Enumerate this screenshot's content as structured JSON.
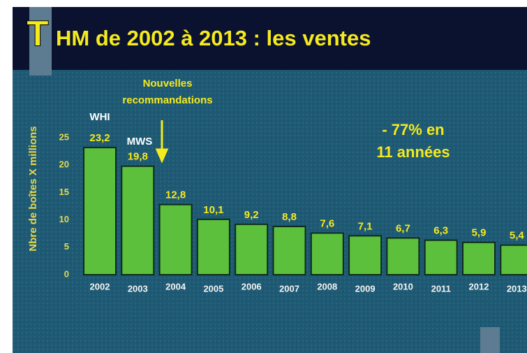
{
  "chart_data": {
    "type": "bar",
    "title": [
      "T",
      "HM de 2002 à 2013 : les ventes"
    ],
    "y_label": "Nbre de boîtes X millions",
    "categories": [
      "2002",
      "2003",
      "2004",
      "2005",
      "2006",
      "2007",
      "2008",
      "2009",
      "2010",
      "2011",
      "2012",
      "2013"
    ],
    "values": [
      23.2,
      19.8,
      12.8,
      10.1,
      9.2,
      8.8,
      7.6,
      7.1,
      6.7,
      6.3,
      5.9,
      5.4
    ],
    "value_labels": [
      "23,2",
      "19,8",
      "12,8",
      "10,1",
      "9,2",
      "8,8",
      "7,6",
      "7,1",
      "6,7",
      "6,3",
      "5,9",
      "5,4"
    ],
    "color": "#5cc03c",
    "ylim": [
      0,
      25
    ],
    "yticks": [
      0,
      5,
      10,
      15,
      20,
      25
    ],
    "annotations": [
      [
        "WHI"
      ],
      [
        "MWS"
      ],
      [
        "Nouvelles",
        "recommandations"
      ],
      [
        "- 77% en",
        "11 années"
      ]
    ]
  }
}
